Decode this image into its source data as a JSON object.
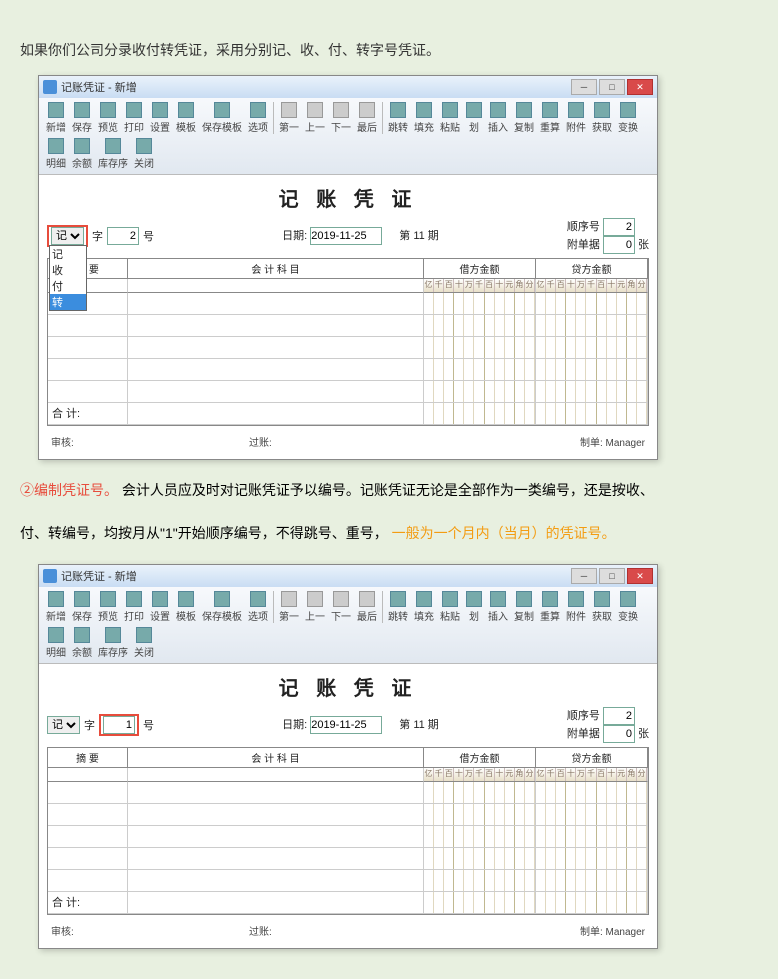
{
  "intro": "如果你们公司分录收付转凭证，采用分别记、收、付、转字号凭证。",
  "para2_red": "②编制凭证号。",
  "para2_rest": "会计人员应及时对记账凭证予以编号。记账凭证无论是全部作为一类编号，还是按收、",
  "para3_a": "付、转编号，均按月从\"1\"开始顺序编号，不得跳号、重号，",
  "para3_orange": "一般为一个月内（当月）的凭证号。",
  "window": {
    "title": "记账凭证 - 新增",
    "doc_title": "记 账 凭 证",
    "toolbar": [
      "新增",
      "保存",
      "预览",
      "打印",
      "设置",
      "模板",
      "保存模板",
      "选项"
    ],
    "toolbar_nav": [
      "第一",
      "上一",
      "下一",
      "最后"
    ],
    "toolbar2": [
      "跳转",
      "填充",
      "粘贴",
      "划",
      "插入",
      "复制",
      "重算",
      "附件",
      "获取",
      "变换",
      "明细",
      "余额",
      "库存序",
      "关闭"
    ],
    "type_label": "记",
    "type_options": [
      "记",
      "收",
      "付",
      "转"
    ],
    "zi": "字",
    "num": "2",
    "num2": "1",
    "hao": "号",
    "date_label": "日期:",
    "date": "2019-11-25",
    "period_label": "第 11 期",
    "seq_label": "顺序号",
    "seq": "2",
    "attach_label": "附单据",
    "attach": "0",
    "zhang": "张",
    "col_summary": "摘    要",
    "col_subject": "会 计 科 目",
    "col_debit": "借方金额",
    "col_credit": "贷方金额",
    "digit_heads": [
      "亿",
      "千",
      "百",
      "十",
      "万",
      "千",
      "百",
      "十",
      "元",
      "角",
      "分"
    ],
    "total": "合  计:",
    "footer_audit": "审核:",
    "footer_post": "过账:",
    "footer_maker": "制单:  Manager"
  }
}
